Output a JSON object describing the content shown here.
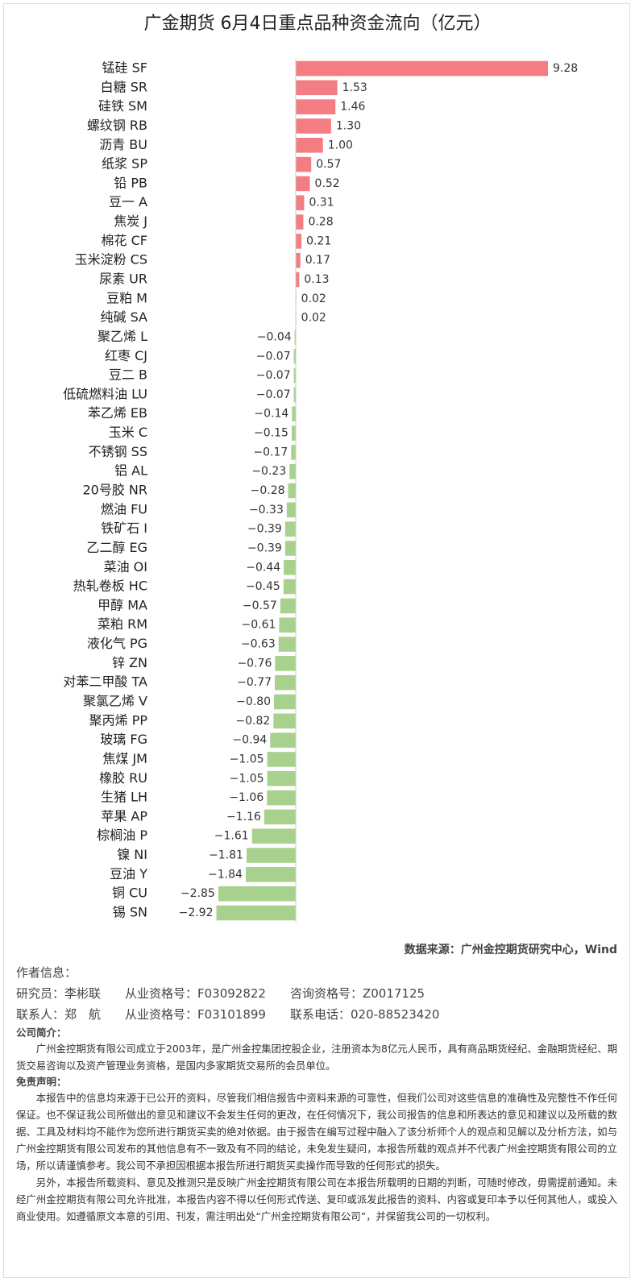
{
  "chart_data": {
    "type": "bar",
    "orientation": "horizontal",
    "title": "广金期货 6月4日重点品种资金流向（亿元）",
    "categories": [
      "锰硅 SF",
      "白糖 SR",
      "硅铁 SM",
      "螺纹钢 RB",
      "沥青 BU",
      "纸浆 SP",
      "铅 PB",
      "豆一 A",
      "焦炭 J",
      "棉花 CF",
      "玉米淀粉 CS",
      "尿素 UR",
      "豆粕 M",
      "纯碱 SA",
      "聚乙烯 L",
      "红枣 CJ",
      "豆二 B",
      "低硫燃料油 LU",
      "苯乙烯 EB",
      "玉米 C",
      "不锈钢 SS",
      "铝 AL",
      "20号胶 NR",
      "燃油 FU",
      "铁矿石 I",
      "乙二醇 EG",
      "菜油 OI",
      "热轧卷板 HC",
      "甲醇 MA",
      "菜粕 RM",
      "液化气 PG",
      "锌 ZN",
      "对苯二甲酸 TA",
      "聚氯乙烯 V",
      "聚丙烯 PP",
      "玻璃 FG",
      "焦煤 JM",
      "橡胶 RU",
      "生猪 LH",
      "苹果 AP",
      "棕榈油 P",
      "镍 NI",
      "豆油 Y",
      "铜 CU",
      "锡 SN"
    ],
    "values": [
      9.28,
      1.53,
      1.46,
      1.3,
      1.0,
      0.57,
      0.52,
      0.31,
      0.28,
      0.21,
      0.17,
      0.13,
      0.02,
      0.02,
      -0.04,
      -0.07,
      -0.07,
      -0.07,
      -0.14,
      -0.15,
      -0.17,
      -0.23,
      -0.28,
      -0.33,
      -0.39,
      -0.39,
      -0.44,
      -0.45,
      -0.57,
      -0.61,
      -0.63,
      -0.76,
      -0.77,
      -0.8,
      -0.82,
      -0.94,
      -1.05,
      -1.05,
      -1.06,
      -1.16,
      -1.61,
      -1.81,
      -1.84,
      -2.85,
      -2.92
    ],
    "value_labels": [
      "9.28",
      "1.53",
      "1.46",
      "1.30",
      "1.00",
      "0.57",
      "0.52",
      "0.31",
      "0.28",
      "0.21",
      "0.17",
      "0.13",
      "0.02",
      "0.02",
      "−0.04",
      "−0.07",
      "−0.07",
      "−0.07",
      "−0.14",
      "−0.15",
      "−0.17",
      "−0.23",
      "−0.28",
      "−0.33",
      "−0.39",
      "−0.39",
      "−0.44",
      "−0.45",
      "−0.57",
      "−0.61",
      "−0.63",
      "−0.76",
      "−0.77",
      "−0.80",
      "−0.82",
      "−0.94",
      "−1.05",
      "−1.05",
      "−1.06",
      "−1.16",
      "−1.61",
      "−1.81",
      "−1.84",
      "−2.85",
      "−2.92"
    ],
    "positive_color": "#f47c83",
    "negative_color": "#a9d18e"
  },
  "footer": {
    "source": "数据来源：广州金控期货研究中心，Wind",
    "author_heading": "作者信息：",
    "researcher": "研究员：李彬联　　从业资格号：F03092822　　咨询资格号：Z0017125",
    "contact": "联系人：郑　航　　从业资格号：F03101899　　联系电话：020-88523420",
    "company_heading": "公司简介：",
    "company": "广州金控期货有限公司成立于2003年，是广州金控集团控股企业，注册资本为8亿元人民币，具有商品期货经纪、金融期货经纪、期货交易咨询以及资产管理业务资格，是国内多家期货交易所的会员单位。",
    "disclaimer_heading": "免责声明：",
    "disclaimer": [
      "本报告中的信息均来源于已公开的资料，尽管我们相信报告中资料来源的可靠性，但我们公司对这些信息的准确性及完整性不作任何保证。也不保证我公司所做出的意见和建议不会发生任何的更改，在任何情况下，我公司报告的信息和所表达的意见和建议以及所载的数据、工具及材料均不能作为您所进行期货买卖的绝对依据。由于报告在编写过程中融入了该分析师个人的观点和见解以及分析方法，如与广州金控期货有限公司发布的其他信息有不一致及有不同的结论，未免发生疑问，本报告所载的观点并不代表广州金控期货有限公司的立场，所以请谨慎参考。我公司不承担因根据本报告所进行期货买卖操作而导致的任何形式的损失。",
      "另外，本报告所载资料、意见及推测只是反映广州金控期货有限公司在本报告所载明的日期的判断，可随时修改，毋需提前通知。未经广州金控期货有限公司允许批准，本报告内容不得以任何形式传送、复印或派发此报告的资料、内容或复印本予以任何其他人，或投入商业使用。如遵循原文本意的引用、刊发，需注明出处“广州金控期货有限公司”，并保留我公司的一切权利。"
    ]
  }
}
